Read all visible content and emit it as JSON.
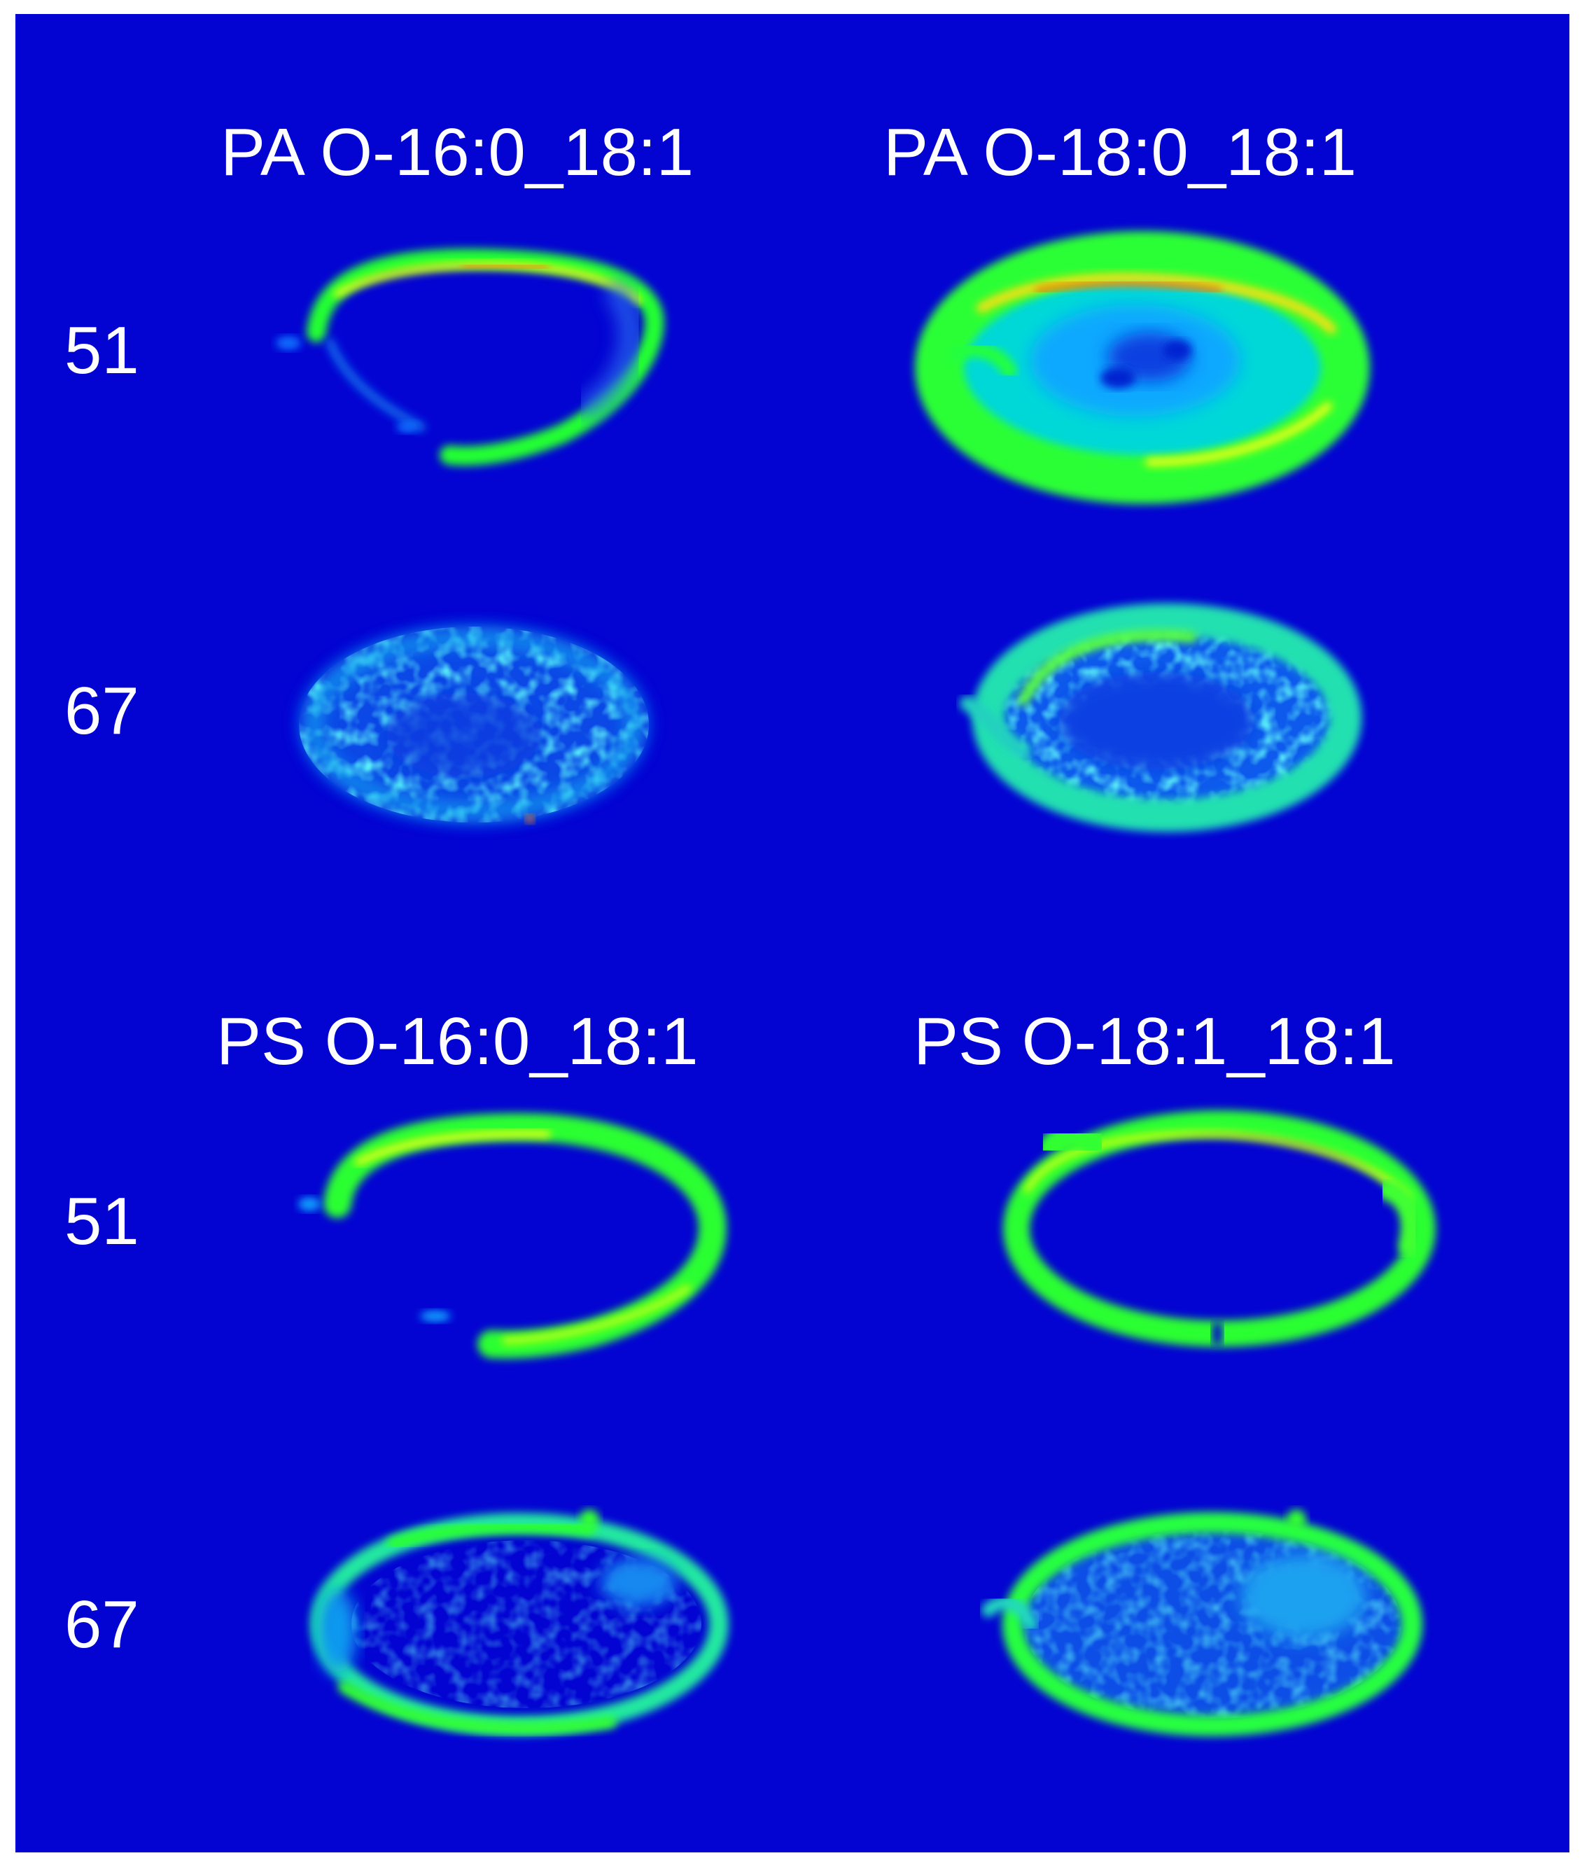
{
  "panel": {
    "background_color": "#0303d2",
    "text_color": "#ffffff",
    "colormap": [
      "#0303d2",
      "#0aa0ff",
      "#00e0d0",
      "#20ff30",
      "#f0ff00",
      "#ff5a00"
    ]
  },
  "blocks": [
    {
      "column_headers": [
        "PA O-16:0_18:1",
        "PA O-18:0_18:1"
      ],
      "row_labels": [
        "51",
        "67"
      ]
    },
    {
      "column_headers": [
        "PS O-16:0_18:1",
        "PS O-18:1_18:1"
      ],
      "row_labels": [
        "51",
        "67"
      ]
    }
  ]
}
